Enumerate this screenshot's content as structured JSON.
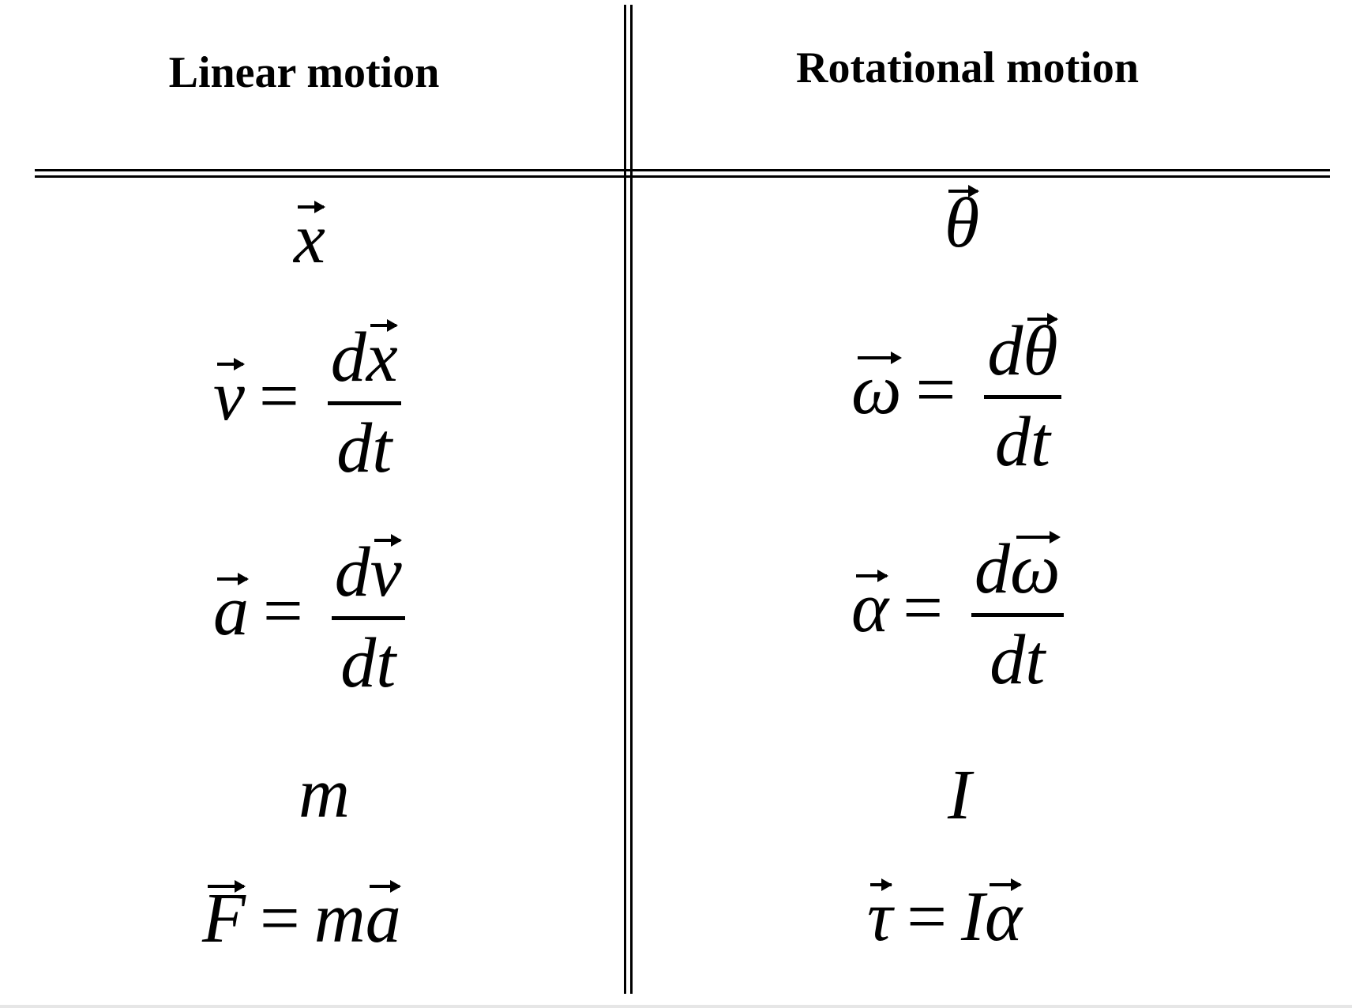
{
  "table": {
    "headers": {
      "linear": "Linear motion",
      "rotational": "Rotational motion"
    },
    "rows": {
      "position": {
        "linear": "x",
        "rotational": "θ"
      },
      "velocity": {
        "linear": {
          "lhs": "v",
          "eq": "=",
          "num_d": "d",
          "num_var": "x",
          "den": "dt"
        },
        "rotational": {
          "lhs": "ω",
          "eq": "=",
          "num_d": "d",
          "num_var": "θ",
          "den": "dt"
        }
      },
      "acceleration": {
        "linear": {
          "lhs": "a",
          "eq": "=",
          "num_d": "d",
          "num_var": "v",
          "den": "dt"
        },
        "rotational": {
          "lhs": "α",
          "eq": "=",
          "num_d": "d",
          "num_var": "ω",
          "den": "dt"
        }
      },
      "inertia": {
        "linear": "m",
        "rotational": "I"
      },
      "force": {
        "linear": {
          "lhs": "F",
          "eq": "=",
          "r1": "m",
          "r2": "a"
        },
        "rotational": {
          "lhs": "τ",
          "eq": "=",
          "r1": "I",
          "r2": "α"
        }
      }
    }
  }
}
